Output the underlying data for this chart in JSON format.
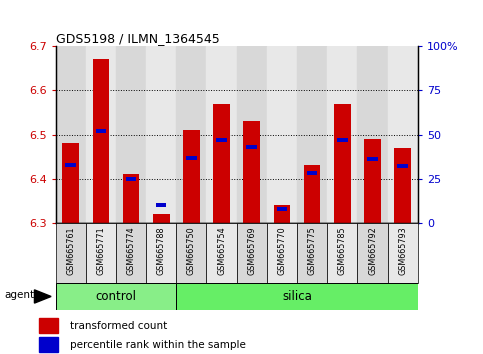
{
  "title": "GDS5198 / ILMN_1364545",
  "samples": [
    "GSM665761",
    "GSM665771",
    "GSM665774",
    "GSM665788",
    "GSM665750",
    "GSM665754",
    "GSM665769",
    "GSM665770",
    "GSM665775",
    "GSM665785",
    "GSM665792",
    "GSM665793"
  ],
  "groups": [
    "control",
    "control",
    "control",
    "control",
    "silica",
    "silica",
    "silica",
    "silica",
    "silica",
    "silica",
    "silica",
    "silica"
  ],
  "transformed_count": [
    6.48,
    6.67,
    6.41,
    6.32,
    6.51,
    6.57,
    6.53,
    6.34,
    6.43,
    6.57,
    6.49,
    6.47
  ],
  "percentile_rank": [
    33,
    52,
    25,
    10,
    37,
    47,
    43,
    8,
    28,
    47,
    36,
    32
  ],
  "ylim": [
    6.3,
    6.7
  ],
  "y_left_ticks": [
    6.3,
    6.4,
    6.5,
    6.6,
    6.7
  ],
  "y_right_ticks": [
    0,
    25,
    50,
    75,
    100
  ],
  "bar_color": "#cc0000",
  "percentile_color": "#0000cc",
  "control_color": "#88ee88",
  "silica_color": "#66ee66",
  "cell_color_odd": "#d8d8d8",
  "cell_color_even": "#e8e8e8",
  "background_color": "#ffffff",
  "tick_label_color_left": "#cc0000",
  "tick_label_color_right": "#0000cc",
  "bar_width": 0.55,
  "base_value": 6.3,
  "percentile_bar_width": 0.35,
  "percentile_bar_height": 0.009
}
